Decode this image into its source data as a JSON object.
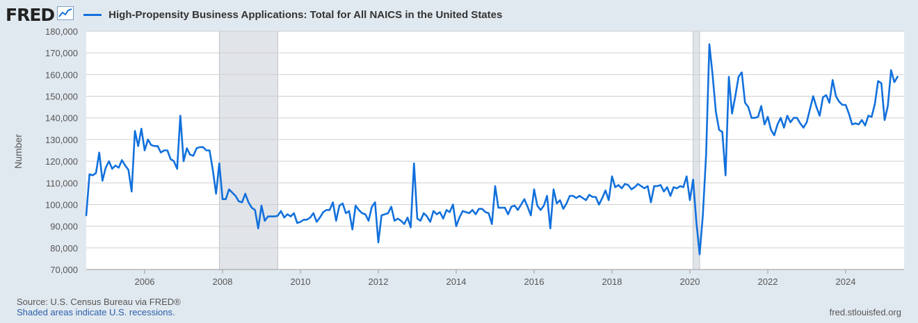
{
  "header": {
    "logo_text": "FRED",
    "logo_icon": "line-chart-icon",
    "series_color": "#1170dc"
  },
  "chart_data": {
    "type": "line",
    "title": "High-Propensity Business Applications: Total for All NAICS in the United States",
    "ylabel": "Number",
    "xlabel": "",
    "ylim": [
      70000,
      180000
    ],
    "xlim": [
      2004.5,
      2025.5
    ],
    "y_ticks": [
      70000,
      80000,
      90000,
      100000,
      110000,
      120000,
      130000,
      140000,
      150000,
      160000,
      170000,
      180000
    ],
    "y_tick_labels": [
      "70,000",
      "80,000",
      "90,000",
      "100,000",
      "110,000",
      "120,000",
      "130,000",
      "140,000",
      "150,000",
      "160,000",
      "170,000",
      "180,000"
    ],
    "x_ticks": [
      2006,
      2008,
      2010,
      2012,
      2014,
      2016,
      2018,
      2020,
      2022,
      2024
    ],
    "x_tick_labels": [
      "2006",
      "2008",
      "2010",
      "2012",
      "2014",
      "2016",
      "2018",
      "2020",
      "2022",
      "2024"
    ],
    "grid": true,
    "recessions": [
      [
        2007.917,
        2009.417
      ],
      [
        2020.083,
        2020.25
      ]
    ],
    "recession_color": "#e1e4e8",
    "series": [
      {
        "color": "#1170dc",
        "start_year": 2004.5,
        "step": 0.08333,
        "values": [
          95000,
          114000,
          113500,
          114500,
          124000,
          111000,
          117000,
          120000,
          116500,
          118000,
          117000,
          120500,
          118000,
          116000,
          106000,
          134000,
          127000,
          135000,
          125000,
          130000,
          127500,
          127000,
          127000,
          124000,
          125000,
          125000,
          121000,
          120000,
          116500,
          141000,
          120000,
          126000,
          123000,
          122500,
          126000,
          126500,
          126500,
          125000,
          125000,
          116000,
          105000,
          119000,
          102500,
          102500,
          107000,
          105500,
          104000,
          101500,
          101000,
          105000,
          101000,
          98500,
          97500,
          89000,
          99500,
          92500,
          94500,
          94500,
          94500,
          94800,
          97000,
          94000,
          95500,
          94500,
          96000,
          91500,
          92000,
          93000,
          93000,
          94000,
          96000,
          92000,
          94000,
          96500,
          97500,
          97500,
          101000,
          92500,
          99500,
          100500,
          96000,
          97000,
          88500,
          99500,
          97500,
          96000,
          95500,
          92500,
          99000,
          101000,
          82500,
          95000,
          95500,
          96000,
          99000,
          92500,
          93500,
          92500,
          91000,
          94000,
          89500,
          119000,
          93500,
          92500,
          96000,
          94500,
          92000,
          97000,
          95500,
          96500,
          93500,
          97500,
          96500,
          100000,
          90000,
          94000,
          97000,
          96500,
          96000,
          97500,
          95500,
          98000,
          98000,
          96500,
          96000,
          91000,
          108500,
          98500,
          98500,
          98500,
          95500,
          99000,
          99500,
          97500,
          100000,
          102500,
          99000,
          95000,
          107000,
          99500,
          97500,
          99500,
          104000,
          89000,
          107000,
          100500,
          102000,
          98000,
          100500,
          104000,
          104000,
          103000,
          104000,
          103000,
          102000,
          104500,
          103500,
          103500,
          100000,
          103000,
          106500,
          102000,
          113000,
          108000,
          109000,
          107500,
          109500,
          109000,
          107000,
          108000,
          109500,
          108500,
          107500,
          108500,
          101000,
          108500,
          108500,
          109000,
          106000,
          108000,
          104000,
          108000,
          107500,
          108500,
          108000,
          113000,
          102000,
          111500,
          92000,
          77000,
          95000,
          123000,
          174000,
          160000,
          143000,
          134500,
          133500,
          113500,
          159000,
          142000,
          150000,
          159000,
          161000,
          147000,
          145000,
          140000,
          140000,
          140500,
          145500,
          137000,
          140500,
          134500,
          132000,
          137000,
          140000,
          135500,
          141000,
          138000,
          140000,
          140000,
          137500,
          135500,
          138000,
          144000,
          150000,
          145000,
          141000,
          149500,
          150500,
          147000,
          157500,
          150000,
          147500,
          146000,
          146000,
          142000,
          137000,
          137500,
          137000,
          139000,
          136500,
          141000,
          140500,
          146500,
          157000,
          156000,
          139000,
          145500,
          162000,
          156500,
          159000
        ]
      }
    ]
  },
  "footer": {
    "source": "Source: U.S. Census Bureau via FRED®",
    "recession_note": "Shaded areas indicate U.S. recessions.",
    "site": "fred.stlouisfed.org"
  }
}
